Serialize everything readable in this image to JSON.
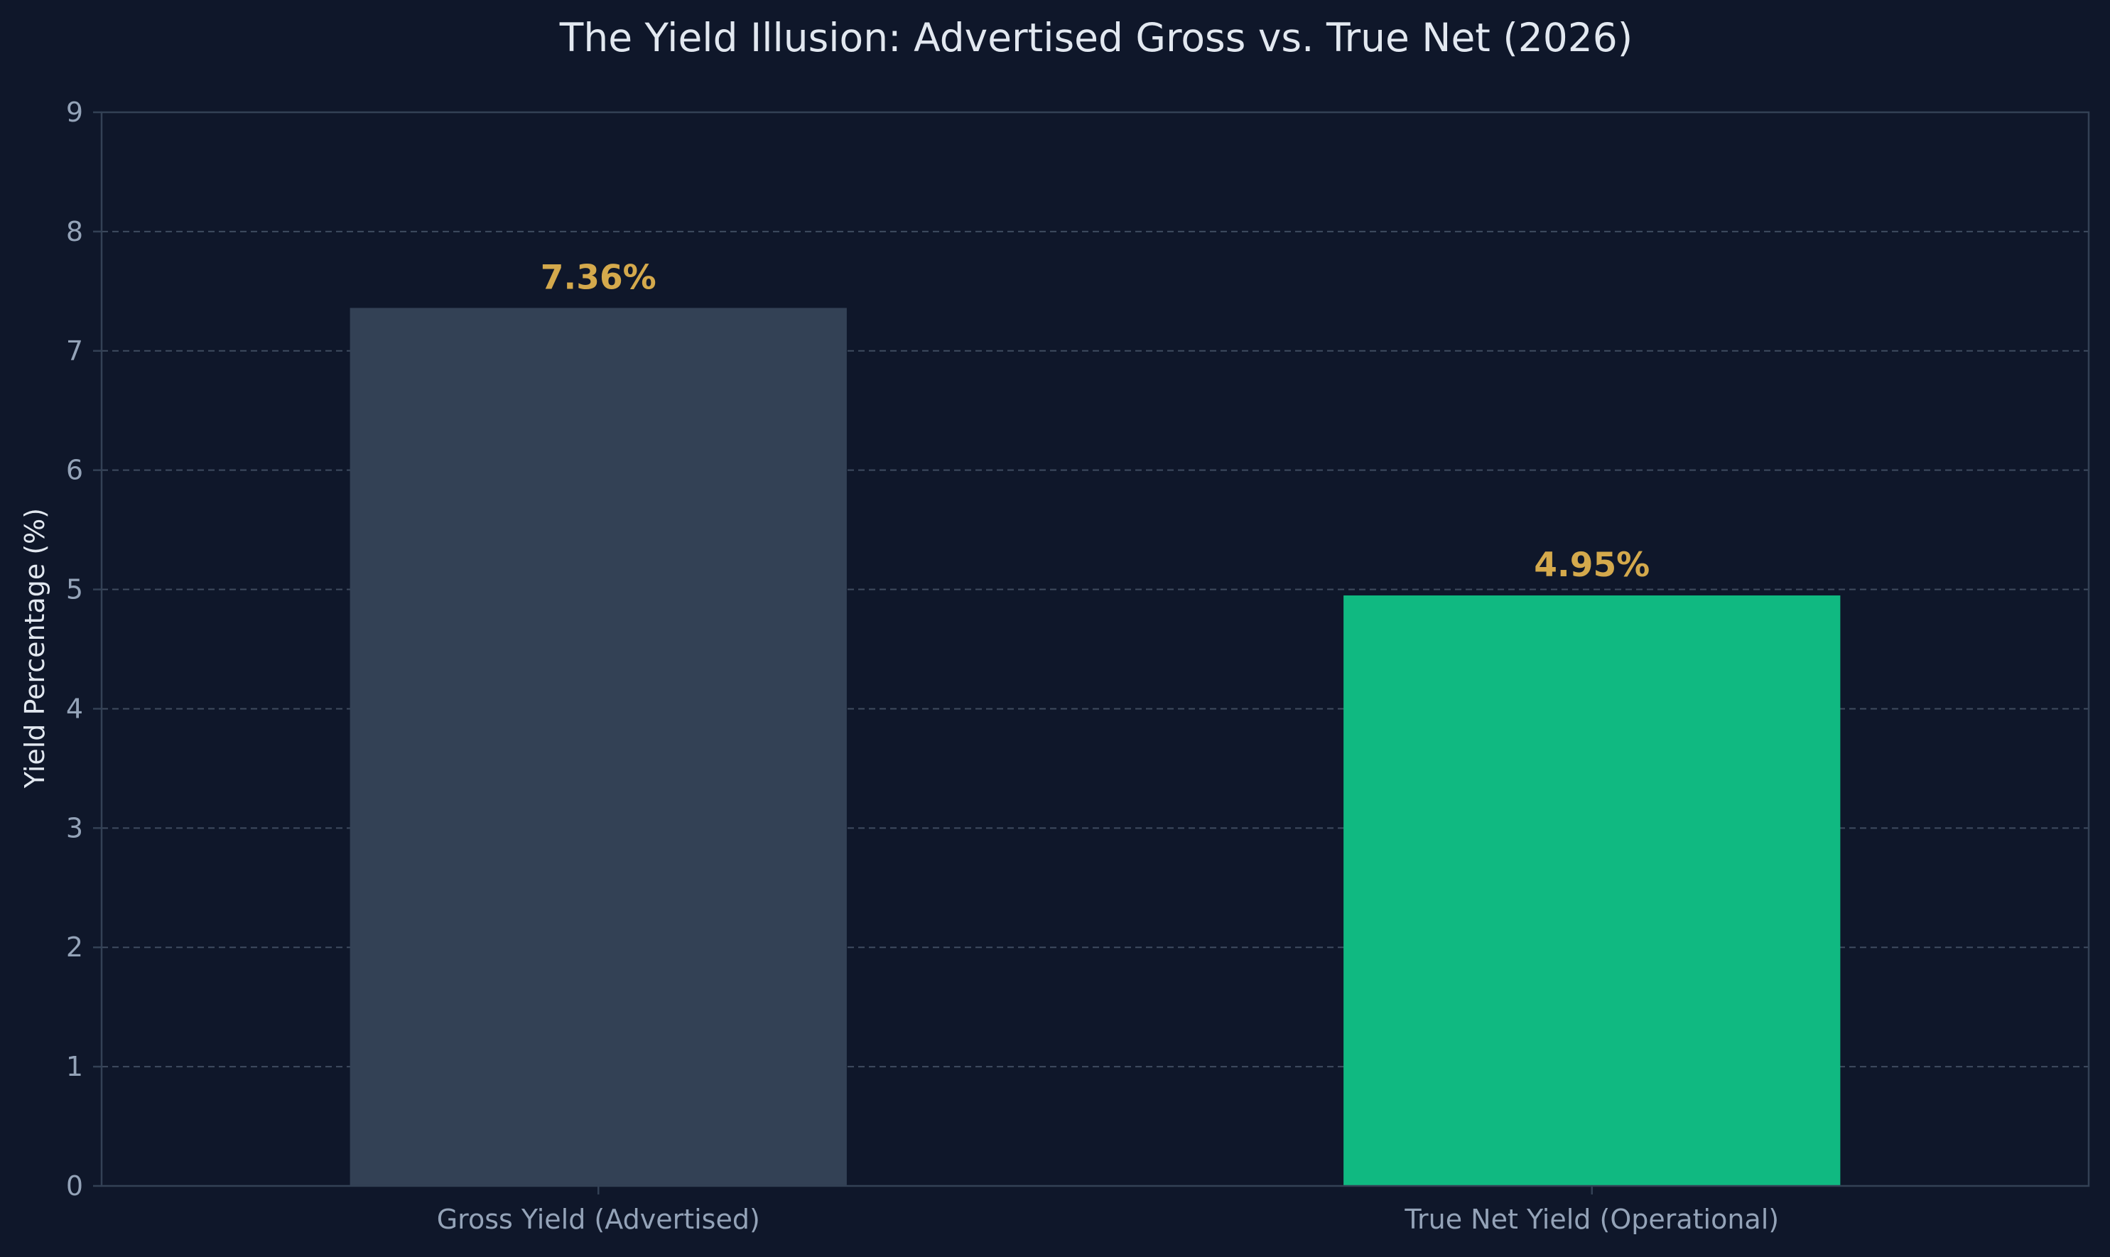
{
  "chart_data": {
    "type": "bar",
    "title": "The Yield Illusion: Advertised Gross vs. True Net (2026)",
    "xlabel": "",
    "ylabel": "Yield Percentage (%)",
    "categories": [
      "Gross Yield (Advertised)",
      "True Net Yield (Operational)"
    ],
    "values": [
      7.36,
      4.95
    ],
    "data_labels": [
      "7.36%",
      "4.95%"
    ],
    "bar_colors": [
      "#334155",
      "#10b981"
    ],
    "data_label_color": "#d4a94c",
    "ylim": [
      0,
      9
    ],
    "yticks": [
      0,
      1,
      2,
      3,
      4,
      5,
      6,
      7,
      8,
      9
    ],
    "grid": "horizontal dashed",
    "legend": "none"
  },
  "colors": {
    "background": "#0f172a",
    "axis": "#334155",
    "grid": "#3f4b5f",
    "tick_text": "#94a3b8",
    "title_text": "#e2e8f0"
  }
}
